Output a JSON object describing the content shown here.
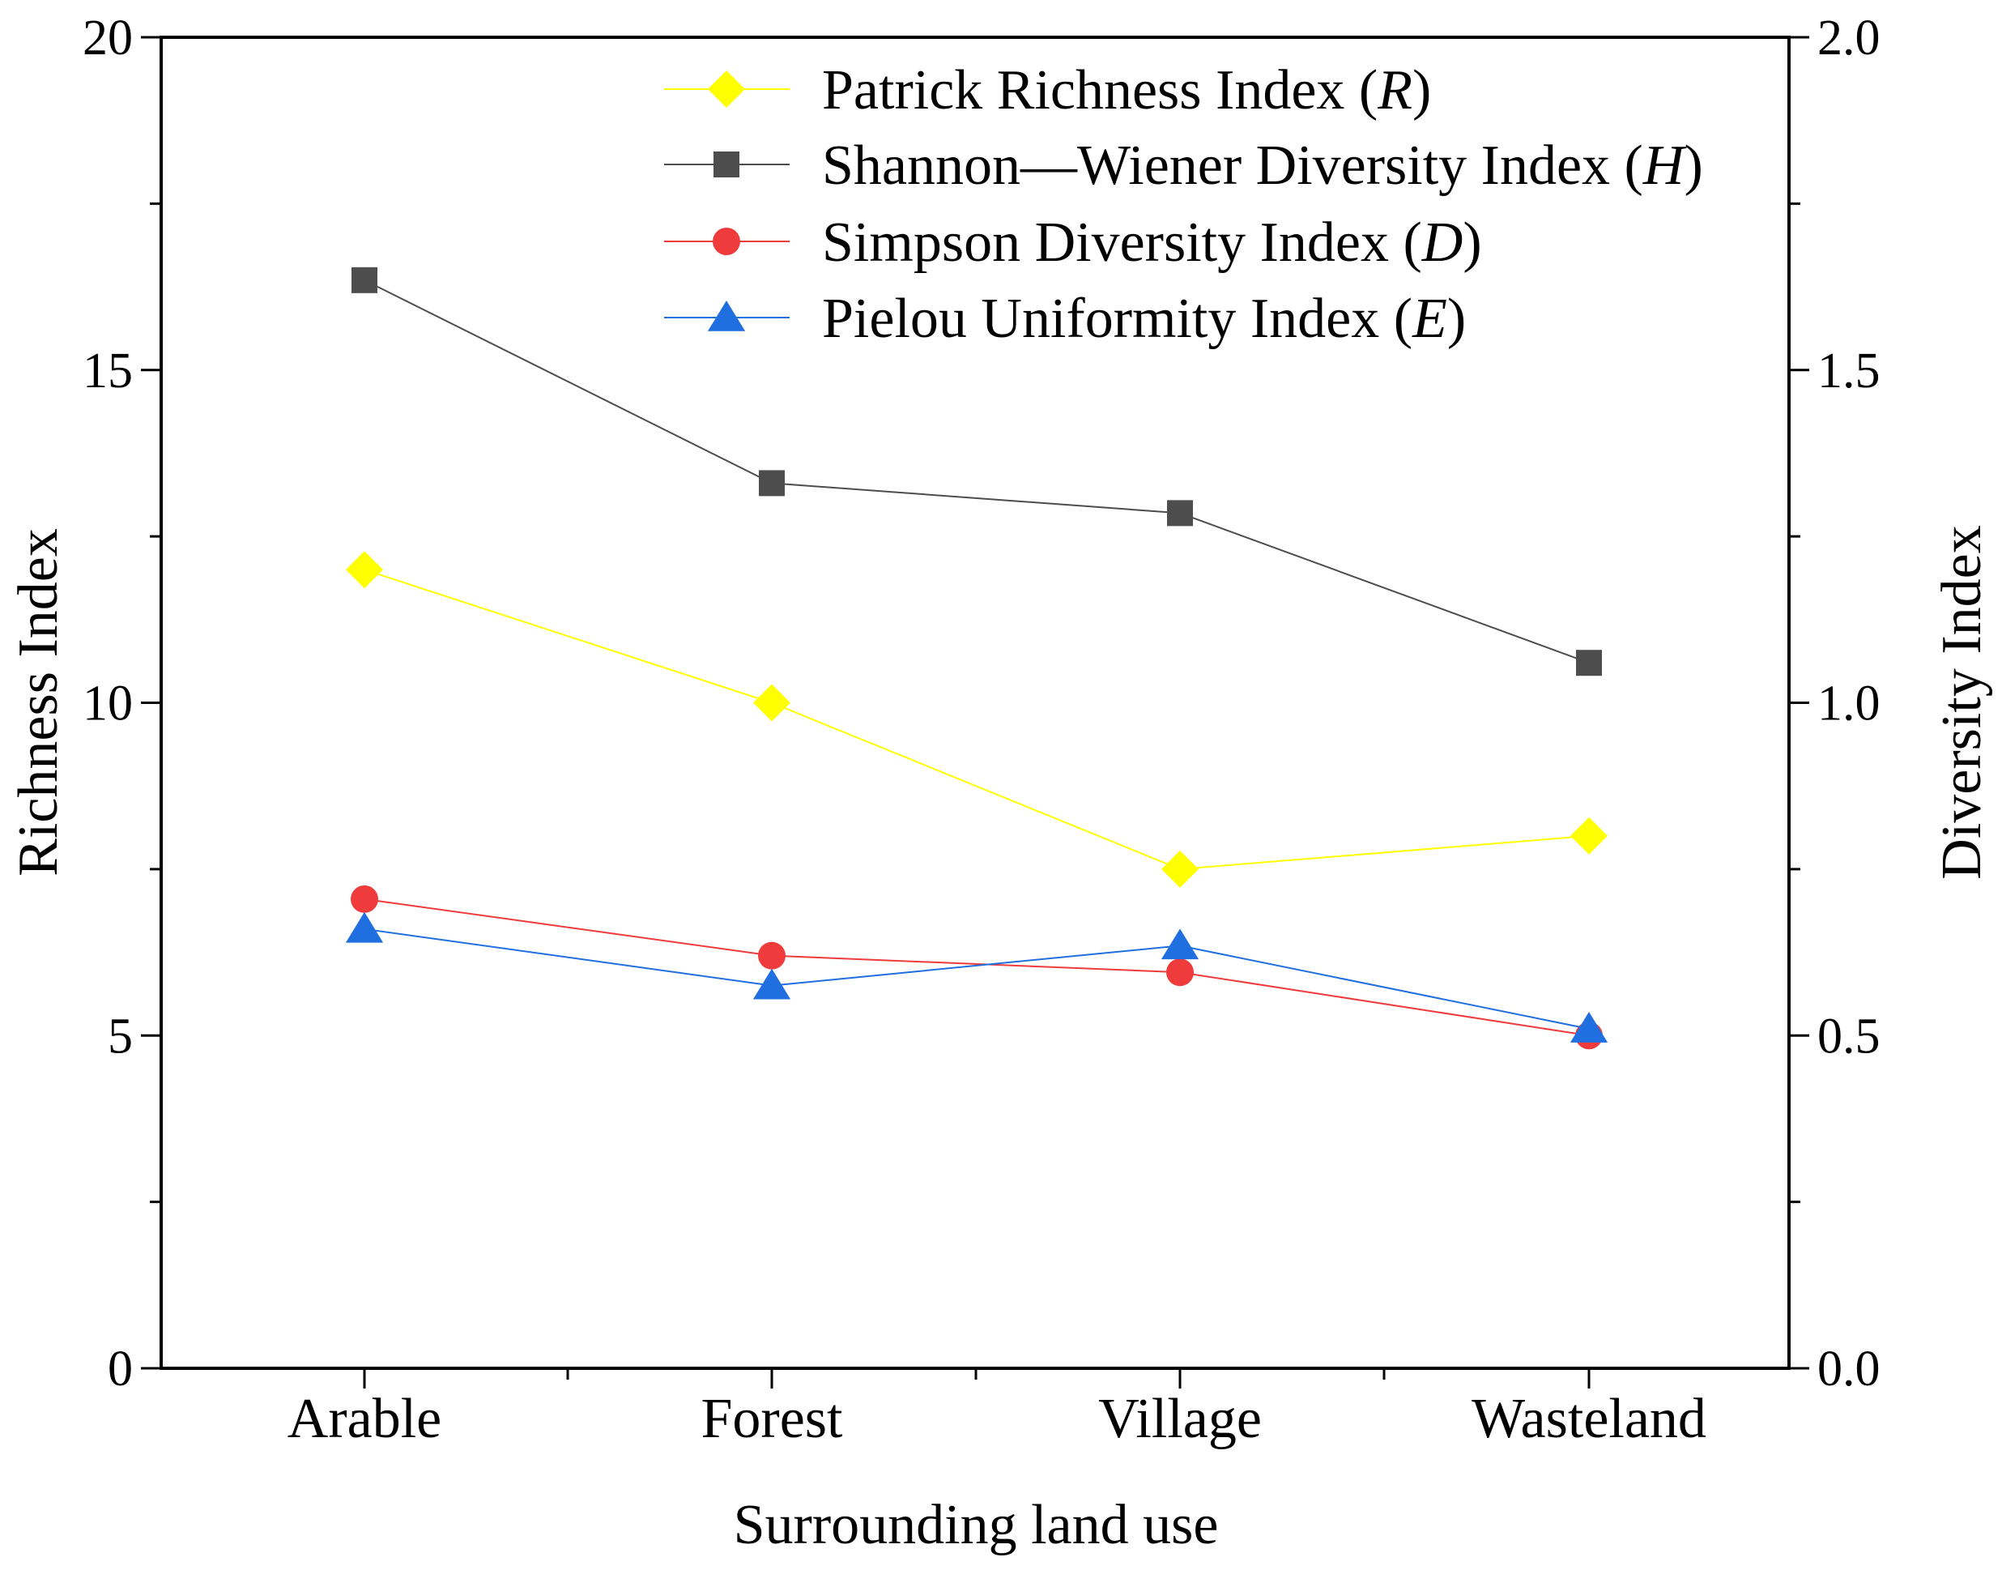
{
  "chart_data": {
    "type": "line",
    "categories": [
      "Arable",
      "Forest",
      "Village",
      "Wasteland"
    ],
    "xlabel": "Surrounding land use",
    "ylabel_left": "Richness Index",
    "ylabel_right": "Diversity Index",
    "ylim_left": [
      0,
      20
    ],
    "ylim_right": [
      0.0,
      2.0
    ],
    "yticks_left": [
      "0",
      "5",
      "10",
      "15",
      "20"
    ],
    "yticks_right": [
      "0.0",
      "0.5",
      "1.0",
      "1.5",
      "2.0"
    ],
    "grid": false,
    "legend_position": "top",
    "series": [
      {
        "key": "R",
        "name": "Patrick Richness Index",
        "symbol": "R",
        "axis": "left",
        "marker": "diamond",
        "color": "#ffff00",
        "values": [
          12.0,
          10.0,
          7.5,
          8.0
        ]
      },
      {
        "key": "H",
        "name": "Shannon—Wiener Diversity Index",
        "symbol": "H",
        "axis": "right",
        "marker": "square",
        "color": "#4d4d4d",
        "values": [
          1.635,
          1.33,
          1.285,
          1.06
        ]
      },
      {
        "key": "D",
        "name": "Simpson Diversity Index",
        "symbol": "D",
        "axis": "right",
        "marker": "circle",
        "color": "#ef3b3b",
        "values": [
          0.705,
          0.62,
          0.595,
          0.5
        ]
      },
      {
        "key": "E",
        "name": "Pielou Uniformity Index",
        "symbol": "E",
        "axis": "right",
        "marker": "triangle",
        "color": "#1f6fe0",
        "values": [
          0.66,
          0.575,
          0.635,
          0.51
        ]
      }
    ]
  }
}
